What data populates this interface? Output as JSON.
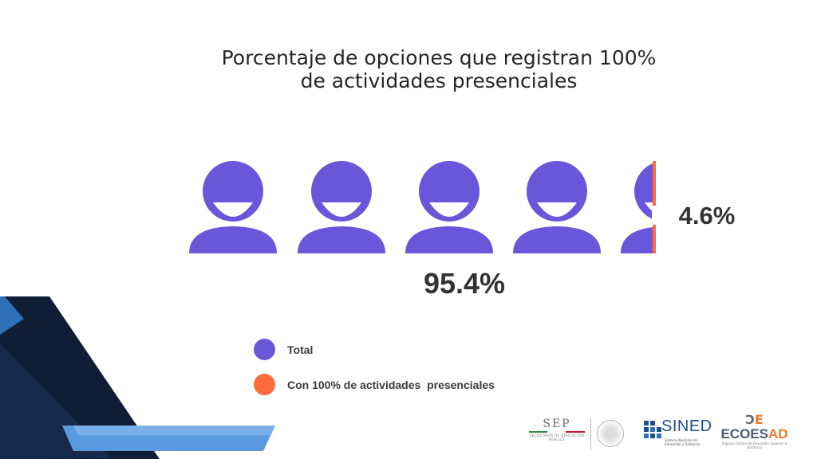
{
  "colors": {
    "total": "#6a56d9",
    "presencial": "#ff6b3d",
    "text": "#262626",
    "deco_dark": "#0f1e36",
    "deco_blue": "#2f6fb8",
    "deco_light": "#5a9be0"
  },
  "chart_data": {
    "type": "pictogram",
    "title": "Porcentaje de opciones que registran 100% de actividades presenciales",
    "title_lines": [
      "Porcentaje de opciones que registran 100%",
      "de actividades presenciales"
    ],
    "icon_count": 5,
    "icon": "person-icon",
    "series": [
      {
        "name": "Total",
        "value": 95.4,
        "label": "95.4%",
        "color": "#6a56d9"
      },
      {
        "name": "Con 100% de actividades  presenciales",
        "value": 4.6,
        "label": "4.6%",
        "color": "#ff6b3d"
      }
    ]
  },
  "legend": [
    {
      "label": "Total",
      "color": "#6a56d9"
    },
    {
      "label": "Con 100% de actividades  presenciales",
      "color": "#ff6b3d"
    }
  ],
  "logos": {
    "sep": {
      "name": "SEP",
      "subtitle": "SECRETARÍA DE EDUCACIÓN PÚBLICA"
    },
    "sined": {
      "name": "SINED",
      "subtitle": "Sistema Nacional de Educación a Distancia"
    },
    "ecoesad": {
      "name_main": "ECOES",
      "name_accent": "AD",
      "subtitle": "Espacio Común de Educación Superior a Distancia"
    }
  }
}
